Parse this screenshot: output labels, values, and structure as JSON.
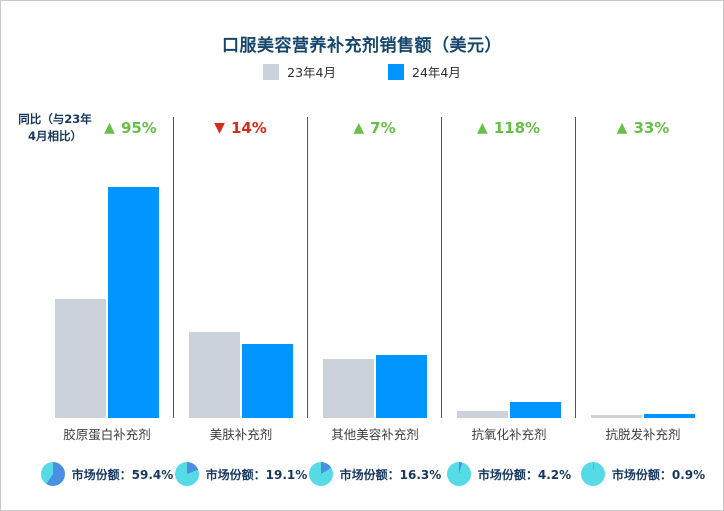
{
  "title": "口服美容营养补充剂销售额（美元）",
  "legend": {
    "prev_label": "23年4月",
    "curr_label": "24年4月"
  },
  "yoy_note": {
    "line1": "同比（与23年",
    "line2": "4月相比）"
  },
  "colors": {
    "title_text": "#17466b",
    "bar_2023": "#ccd2db",
    "bar_2024": "#0095ff",
    "up": "#67bf47",
    "down": "#d62a1a",
    "divider": "#555555",
    "pie_main": "#4a90e2",
    "pie_rest": "#55dbe6",
    "share_text": "#17375e"
  },
  "groups": [
    {
      "category": "胶原蛋白补充剂",
      "arrow": "▲",
      "trend": "up",
      "pct": "95%",
      "prev": 30.5,
      "curr": 59.4,
      "share": 59.4,
      "share_label": "市场份额：59.4%"
    },
    {
      "category": "美肤补充剂",
      "arrow": "▼",
      "trend": "down",
      "pct": "14%",
      "prev": 22.2,
      "curr": 19.1,
      "share": 19.1,
      "share_label": "市场份额：19.1%"
    },
    {
      "category": "其他美容补充剂",
      "arrow": "▲",
      "trend": "up",
      "pct": "7%",
      "prev": 15.2,
      "curr": 16.3,
      "share": 16.3,
      "share_label": "市场份额：16.3%"
    },
    {
      "category": "抗氧化补充剂",
      "arrow": "▲",
      "trend": "up",
      "pct": "118%",
      "prev": 1.9,
      "curr": 4.2,
      "share": 4.2,
      "share_label": "市场份额：4.2%"
    },
    {
      "category": "抗脱发补充剂",
      "arrow": "▲",
      "trend": "up",
      "pct": "33%",
      "prev": 0.7,
      "curr": 0.9,
      "share": 0.9,
      "share_label": "市场份额：0.9%"
    }
  ],
  "chart_data": {
    "type": "bar",
    "title": "口服美容营养补充剂销售额（美元）",
    "categories": [
      "胶原蛋白补充剂",
      "美肤补充剂",
      "其他美容补充剂",
      "抗氧化补充剂",
      "抗脱发补充剂"
    ],
    "series": [
      {
        "name": "23年4月",
        "values": [
          30.5,
          22.2,
          15.2,
          1.9,
          0.7
        ]
      },
      {
        "name": "24年4月",
        "values": [
          59.4,
          19.1,
          16.3,
          4.2,
          0.9
        ]
      }
    ],
    "yoy_change": [
      "+95%",
      "-14%",
      "+7%",
      "+118%",
      "+33%"
    ],
    "market_share_pct": [
      59.4,
      19.1,
      16.3,
      4.2,
      0.9
    ],
    "ylim": [
      0,
      62
    ],
    "y_axis_visible": false,
    "grid": false,
    "legend_position": "top"
  }
}
